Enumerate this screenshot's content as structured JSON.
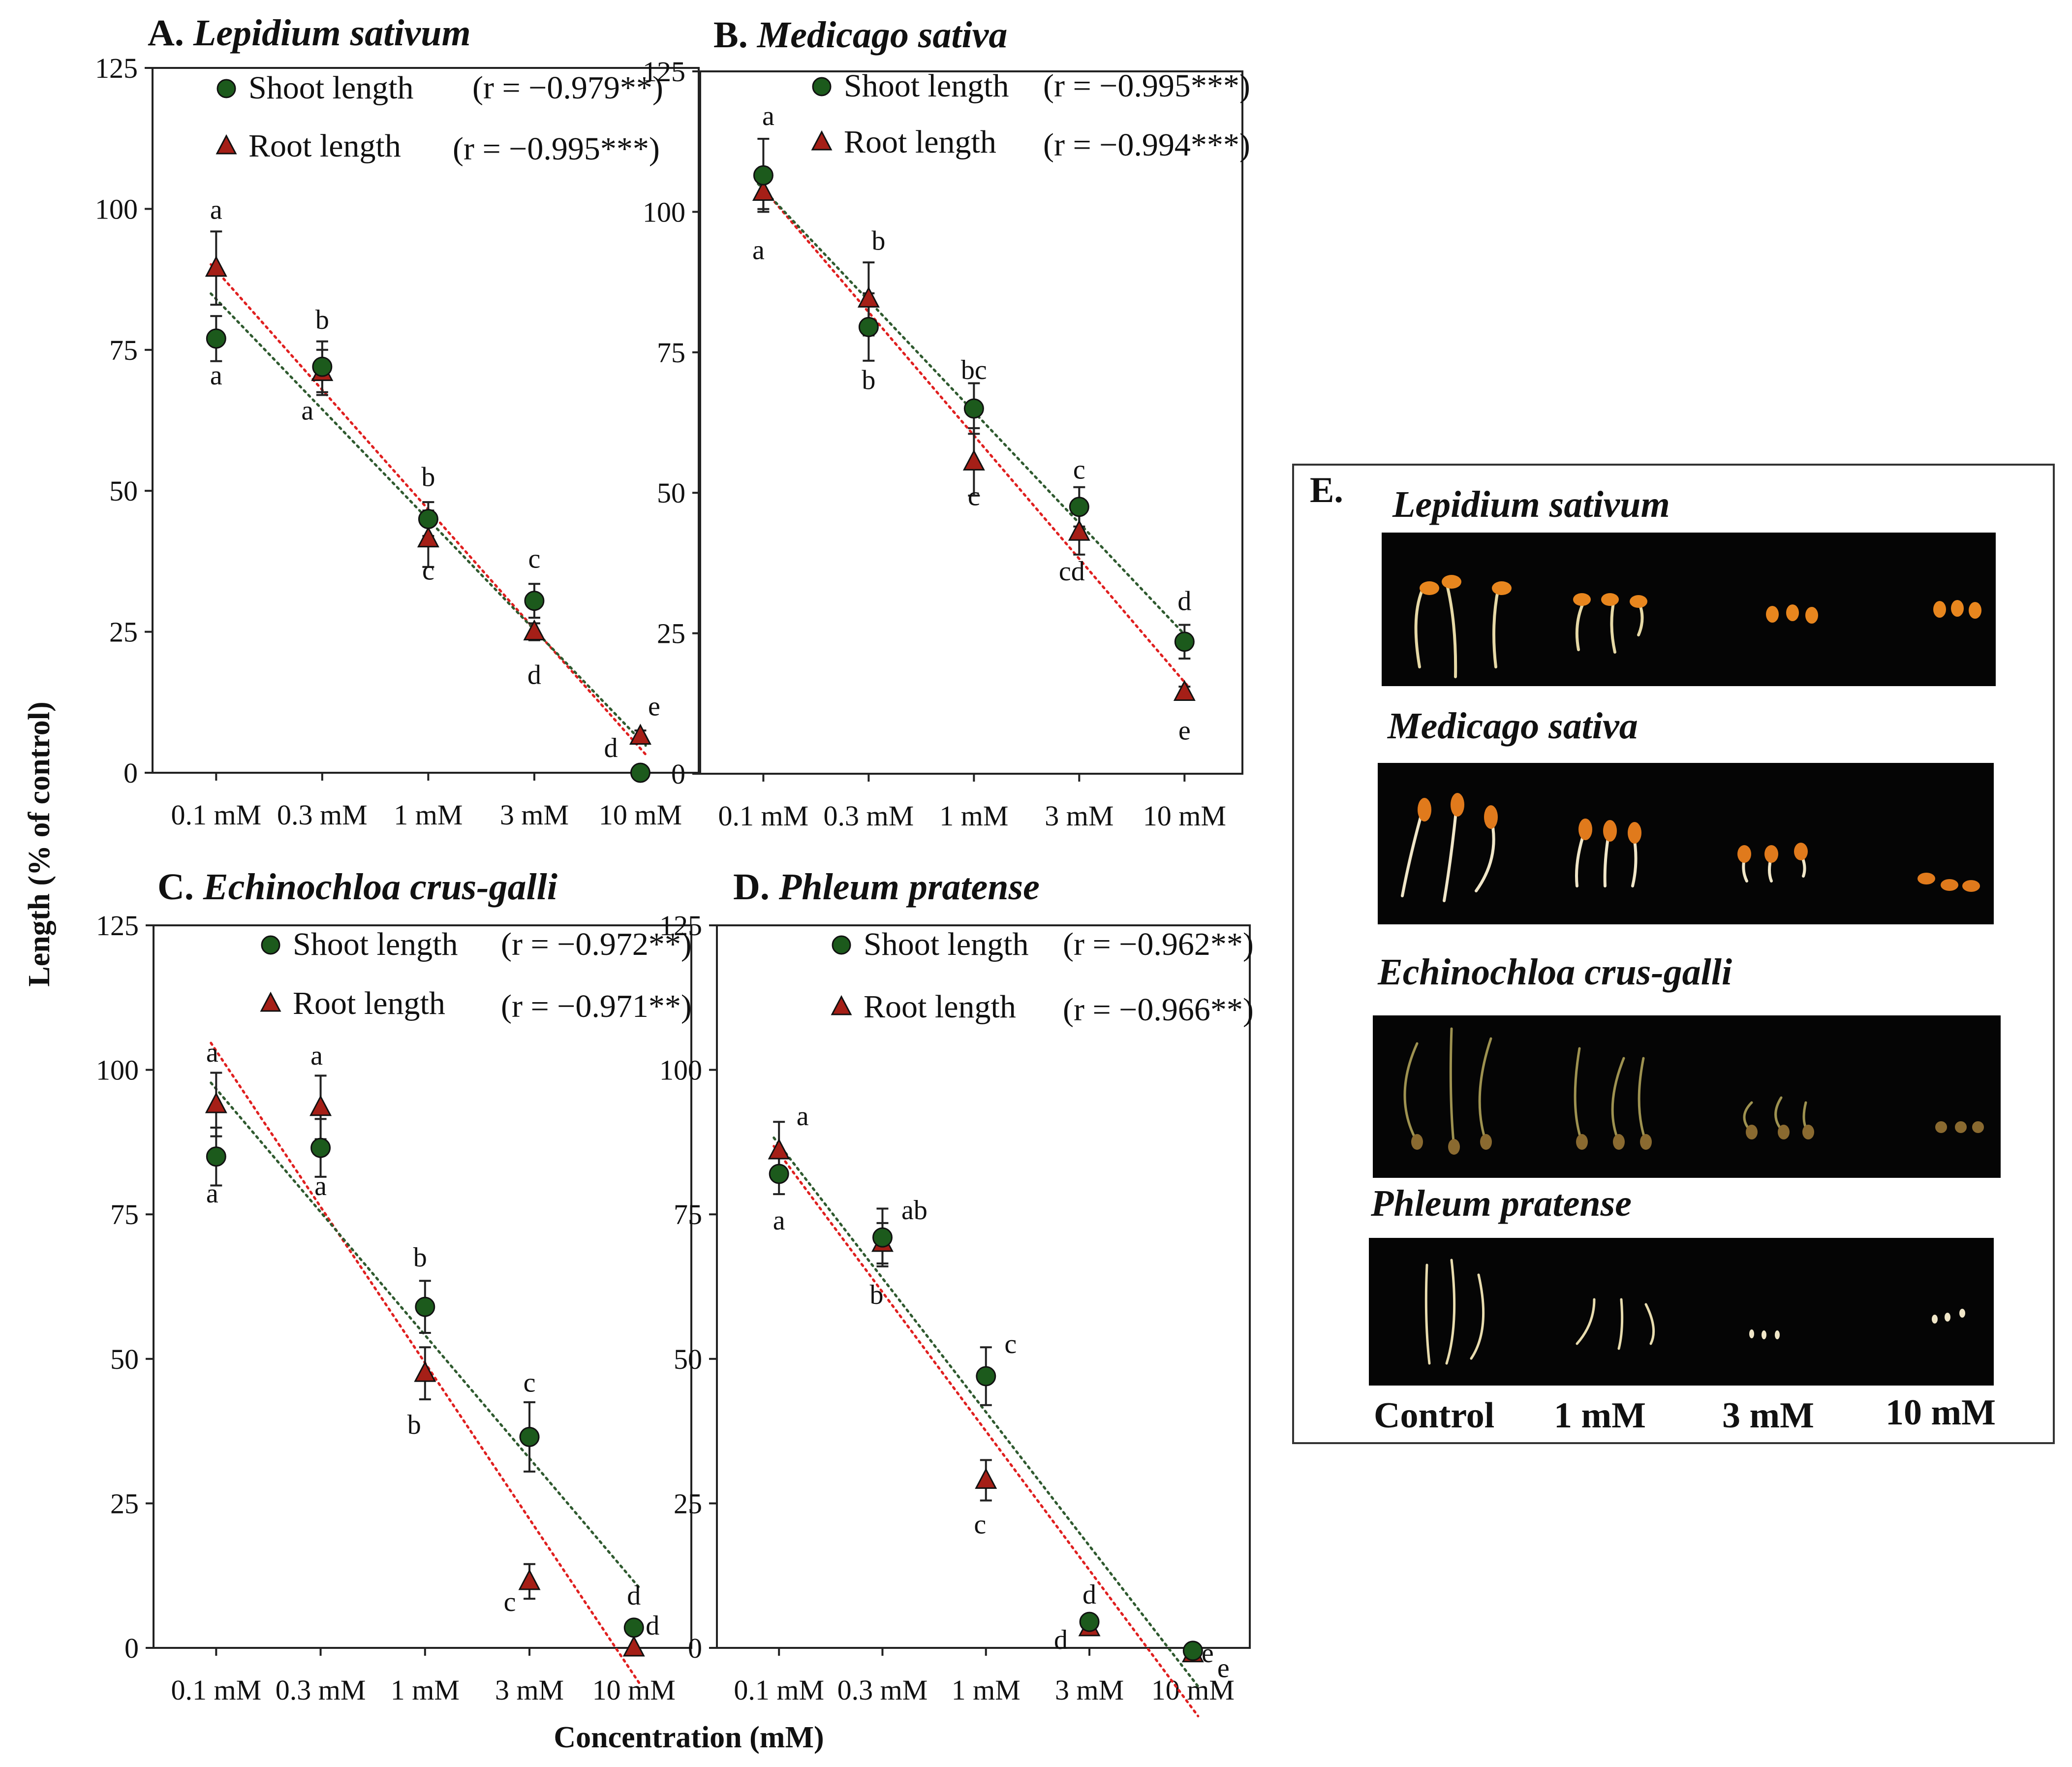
{
  "figure": {
    "y_axis_label": "Length (% of control)",
    "x_axis_label": "Concentration (mM)"
  },
  "colors": {
    "shoot": "#1c5a1c",
    "root": "#a51f17",
    "shoot_trend": "#2f5a2f",
    "root_trend": "#e02020"
  },
  "chart_data": [
    {
      "type": "scatter",
      "letter": "A.",
      "species": "Lepidium sativum",
      "categories": [
        "0.1 mM",
        "0.3 mM",
        "1 mM",
        "3 mM",
        "10 mM"
      ],
      "ylim": [
        0,
        125
      ],
      "yticks": [
        "0",
        "25",
        "50",
        "75",
        "100",
        "125"
      ],
      "series": [
        {
          "name": "Shoot length",
          "corr": "(r = −0.979**)",
          "values": [
            77,
            72,
            45,
            30.5,
            0
          ],
          "errors": [
            4,
            4.5,
            3,
            3,
            0
          ],
          "letters": [
            "a",
            "b",
            "b",
            "c",
            "d"
          ]
        },
        {
          "name": "Root length",
          "corr": "(r = −0.995***)",
          "values": [
            89.5,
            71,
            41.5,
            25,
            6.5
          ],
          "errors": [
            6.5,
            4,
            5,
            1.5,
            1
          ],
          "letters": [
            "a",
            "a",
            "c",
            "d",
            "e"
          ]
        }
      ]
    },
    {
      "type": "scatter",
      "letter": "B.",
      "species": "Medicago sativa",
      "categories": [
        "0.1 mM",
        "0.3 mM",
        "1 mM",
        "3 mM",
        "10 mM"
      ],
      "ylim": [
        0,
        125
      ],
      "yticks": [
        "0",
        "25",
        "50",
        "75",
        "100",
        "125"
      ],
      "series": [
        {
          "name": "Shoot length",
          "corr": "(r = −0.995***)",
          "values": [
            106.5,
            79.5,
            65,
            47.5,
            23.5
          ],
          "errors": [
            6.5,
            6,
            4.5,
            3.5,
            3
          ],
          "letters": [
            "a",
            "b",
            "bc",
            "c",
            "d"
          ]
        },
        {
          "name": "Root length",
          "corr": "(r = −0.994***)",
          "values": [
            103.5,
            84.5,
            55.5,
            43,
            14.5
          ],
          "errors": [
            3,
            6.5,
            6,
            4,
            1
          ],
          "letters": [
            "a",
            "b",
            "c",
            "cd",
            "e"
          ]
        }
      ]
    },
    {
      "type": "scatter",
      "letter": "C.",
      "species": "Echinochloa crus-galli",
      "categories": [
        "0.1 mM",
        "0.3 mM",
        "1 mM",
        "3 mM",
        "10 mM"
      ],
      "ylim": [
        0,
        125
      ],
      "yticks": [
        "0",
        "25",
        "50",
        "75",
        "100",
        "125"
      ],
      "series": [
        {
          "name": "Shoot length",
          "corr": "(r = −0.972**)",
          "values": [
            85,
            86.5,
            59,
            36.5,
            3.5
          ],
          "errors": [
            5,
            5,
            4.5,
            6,
            1
          ],
          "letters": [
            "a",
            "a",
            "b",
            "c",
            "d"
          ]
        },
        {
          "name": "Root length",
          "corr": "(r = −0.971**)",
          "values": [
            94,
            93.5,
            47.5,
            11.5,
            0
          ],
          "errors": [
            5.5,
            5.5,
            4.5,
            3,
            0
          ],
          "letters": [
            "a",
            "a",
            "b",
            "c",
            "d"
          ]
        }
      ]
    },
    {
      "type": "scatter",
      "letter": "D.",
      "species": "Phleum pratense",
      "categories": [
        "0.1 mM",
        "0.3 mM",
        "1 mM",
        "3 mM",
        "10 mM"
      ],
      "ylim": [
        0,
        125
      ],
      "yticks": [
        "0",
        "25",
        "50",
        "75",
        "100",
        "125"
      ],
      "series": [
        {
          "name": "Shoot length",
          "corr": "(r = −0.962**)",
          "values": [
            82,
            71,
            47,
            4.5,
            -0.5
          ],
          "errors": [
            3.5,
            5,
            5,
            1,
            0
          ],
          "letters": [
            "a",
            "ab",
            "c",
            "d",
            "e"
          ]
        },
        {
          "name": "Root length",
          "corr": "(r = −0.966**)",
          "values": [
            86,
            70,
            29,
            3.5,
            -1
          ],
          "errors": [
            5,
            3.5,
            3.5,
            1,
            0
          ],
          "letters": [
            "a",
            "b",
            "c",
            "d",
            "e"
          ]
        }
      ]
    }
  ],
  "photo_panel": {
    "letter": "E.",
    "rows": [
      {
        "species": "Lepidium sativum"
      },
      {
        "species": "Medicago sativa"
      },
      {
        "species": "Echinochloa crus-galli"
      },
      {
        "species": "Phleum pratense"
      }
    ],
    "column_labels": [
      "Control",
      "1 mM",
      "3 mM",
      "10 mM"
    ]
  }
}
